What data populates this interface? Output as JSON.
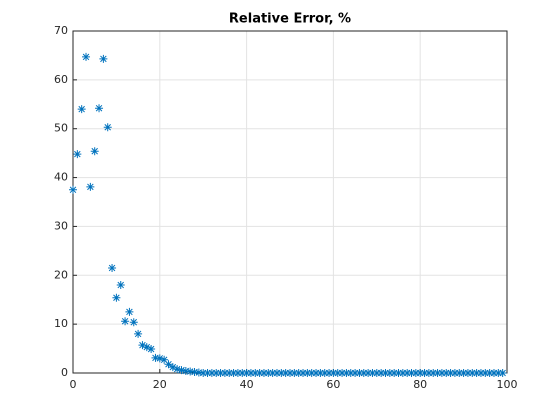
{
  "chart_data": {
    "type": "scatter",
    "title": "Relative Error, %",
    "x": [
      0,
      1,
      2,
      3,
      4,
      5,
      6,
      7,
      8,
      9,
      10,
      11,
      12,
      13,
      14,
      15,
      16,
      17,
      18,
      19,
      20,
      21,
      22,
      23,
      24,
      25,
      26,
      27,
      28,
      29,
      30,
      31,
      32,
      33,
      34,
      35,
      36,
      37,
      38,
      39,
      40,
      41,
      42,
      43,
      44,
      45,
      46,
      47,
      48,
      49,
      50,
      51,
      52,
      53,
      54,
      55,
      56,
      57,
      58,
      59,
      60,
      61,
      62,
      63,
      64,
      65,
      66,
      67,
      68,
      69,
      70,
      71,
      72,
      73,
      74,
      75,
      76,
      77,
      78,
      79,
      80,
      81,
      82,
      83,
      84,
      85,
      86,
      87,
      88,
      89,
      90,
      91,
      92,
      93,
      94,
      95,
      96,
      97,
      98,
      99
    ],
    "values": [
      37.5,
      44.8,
      54.0,
      64.7,
      38.1,
      45.4,
      54.2,
      64.3,
      50.3,
      21.5,
      15.4,
      18.0,
      10.6,
      12.5,
      10.4,
      8.0,
      5.7,
      5.3,
      4.9,
      3.1,
      3.0,
      2.7,
      1.8,
      1.2,
      0.8,
      0.6,
      0.4,
      0.3,
      0.2,
      0.1,
      0,
      0,
      0,
      0,
      0,
      0,
      0,
      0,
      0,
      0,
      0,
      0,
      0,
      0,
      0,
      0,
      0,
      0,
      0,
      0,
      0,
      0,
      0,
      0,
      0,
      0,
      0,
      0,
      0,
      0,
      0,
      0,
      0,
      0,
      0,
      0,
      0,
      0,
      0,
      0,
      0,
      0,
      0,
      0,
      0,
      0,
      0,
      0,
      0,
      0,
      0,
      0,
      0,
      0,
      0,
      0,
      0,
      0,
      0,
      0,
      0,
      0,
      0,
      0,
      0,
      0,
      0,
      0,
      0,
      0
    ],
    "color": "#0072bd",
    "marker": "asterisk",
    "xlim": [
      0,
      100
    ],
    "xticks": [
      0,
      20,
      40,
      60,
      80,
      100
    ],
    "ylim": [
      0,
      70
    ],
    "yticks": [
      0,
      10,
      20,
      30,
      40,
      50,
      60,
      70
    ],
    "grid": true
  }
}
